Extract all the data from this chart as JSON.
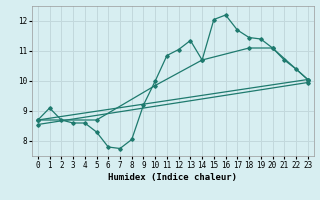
{
  "xlabel": "Humidex (Indice chaleur)",
  "background_color": "#d7eef1",
  "grid_color": "#c2d8dc",
  "line_color": "#1e7a6e",
  "xlim": [
    -0.5,
    23.5
  ],
  "ylim": [
    7.5,
    12.5
  ],
  "yticks": [
    8,
    9,
    10,
    11,
    12
  ],
  "xticks": [
    0,
    1,
    2,
    3,
    4,
    5,
    6,
    7,
    8,
    9,
    10,
    11,
    12,
    13,
    14,
    15,
    16,
    17,
    18,
    19,
    20,
    21,
    22,
    23
  ],
  "series1_x": [
    0,
    1,
    2,
    3,
    4,
    5,
    6,
    7,
    8,
    9,
    10,
    11,
    12,
    13,
    14,
    15,
    16,
    17,
    18,
    19,
    20,
    21,
    22,
    23
  ],
  "series1_y": [
    8.7,
    9.1,
    8.7,
    8.6,
    8.6,
    8.3,
    7.8,
    7.75,
    8.05,
    9.2,
    10.0,
    10.85,
    11.05,
    11.35,
    10.7,
    12.05,
    12.2,
    11.7,
    11.45,
    11.4,
    11.1,
    10.7,
    10.4,
    10.05
  ],
  "series2_x": [
    0,
    23
  ],
  "series2_y": [
    8.7,
    10.05
  ],
  "series3_x": [
    0,
    5,
    10,
    14,
    18,
    20,
    23
  ],
  "series3_y": [
    8.7,
    8.7,
    9.85,
    10.7,
    11.1,
    11.1,
    10.05
  ],
  "series4_x": [
    0,
    23
  ],
  "series4_y": [
    8.55,
    9.95
  ]
}
